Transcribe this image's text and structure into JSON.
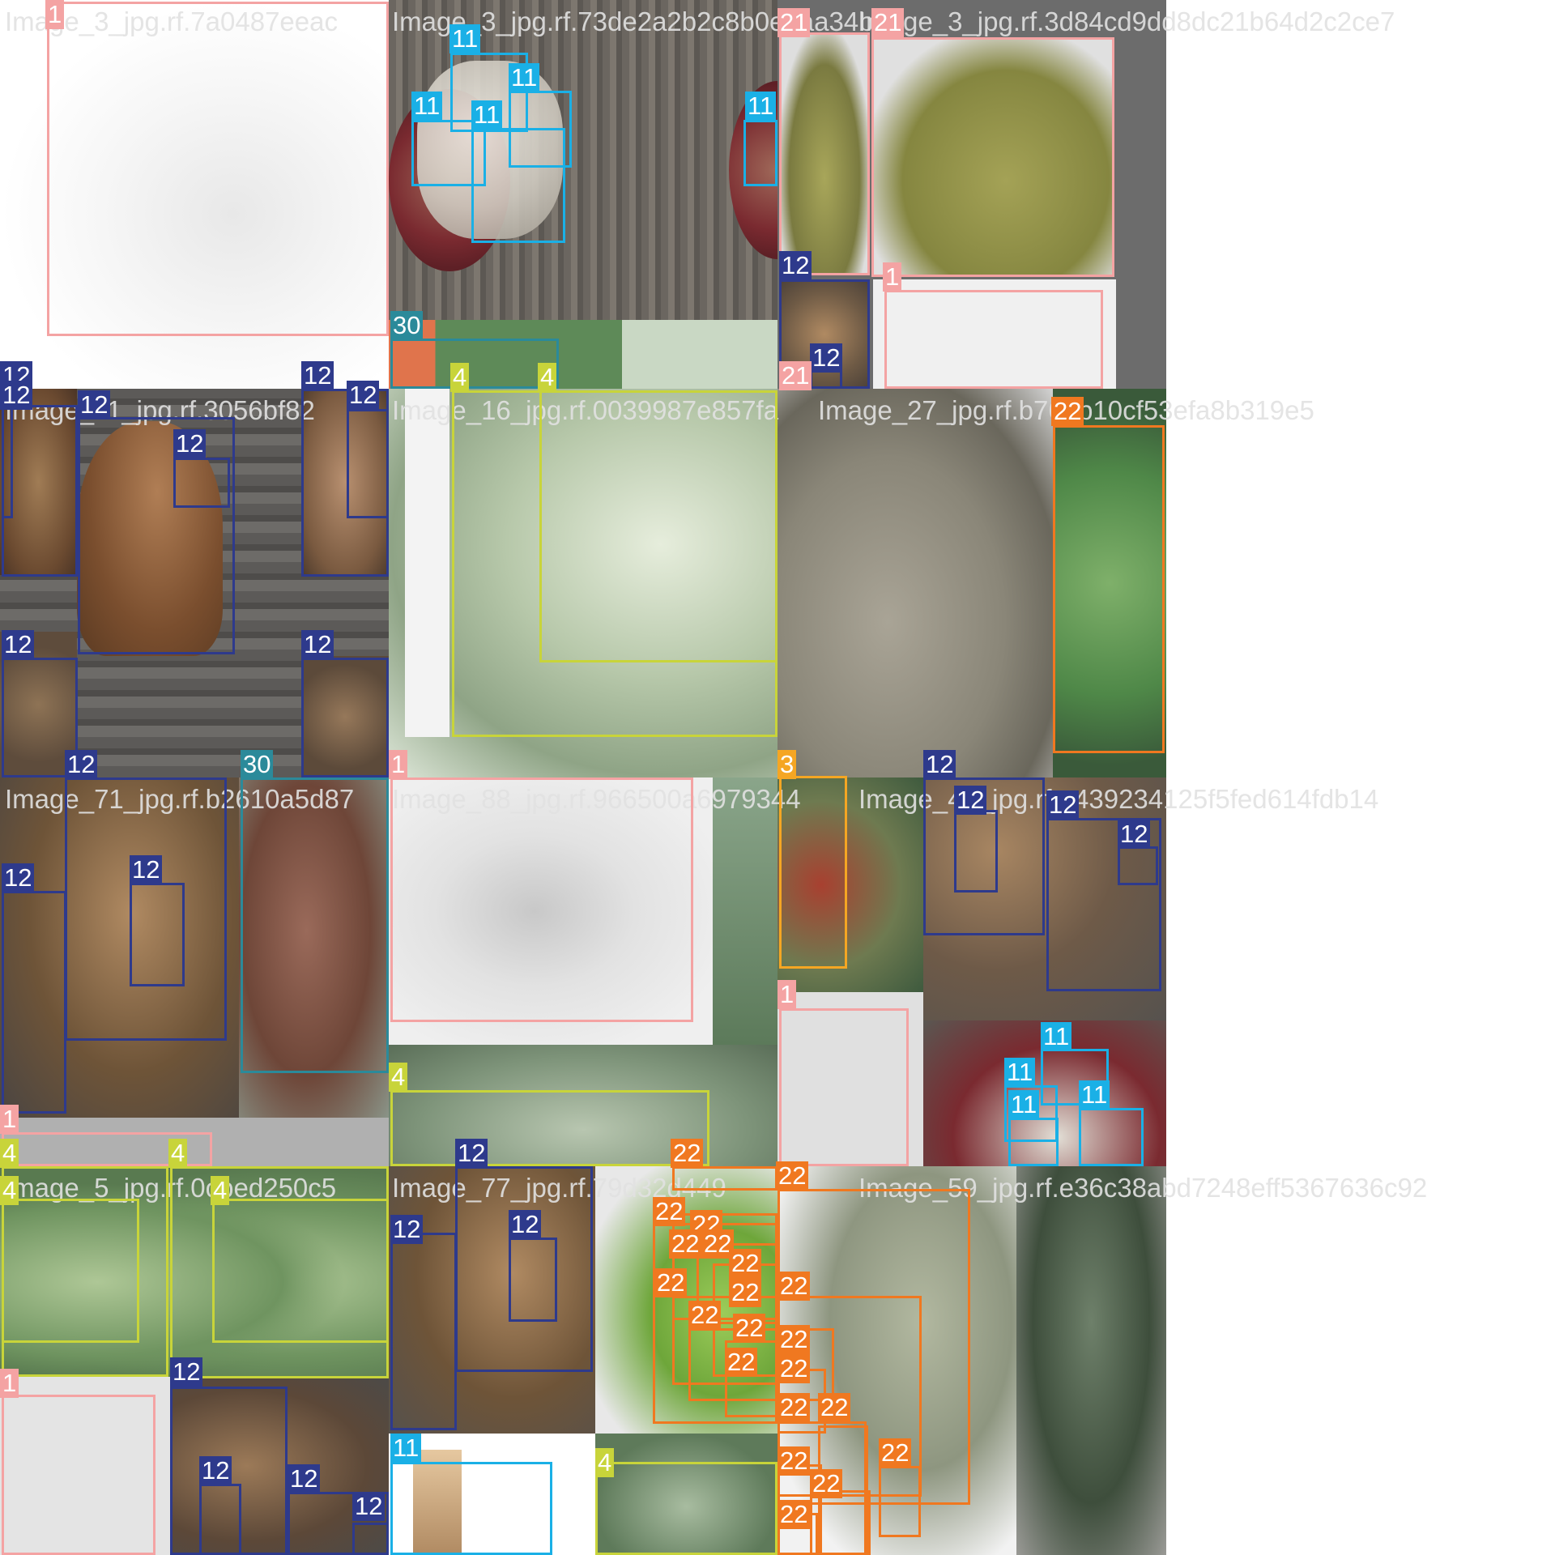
{
  "captions": [
    "Image_3_jpg.rf.7a0487eeac",
    "Image_3_jpg.rf.73de2a2b2c8b0edaa34b0",
    "Image_3_jpg.rf.3d84cd9dd8dc21b64d2c2ce7",
    "Image_11_jpg.rf.3056bf82",
    "Image_16_jpg.rf.0039987e857fa",
    "Image_27_jpg.rf.b76bb10cf53efa8b319e5",
    "Image_71_jpg.rf.b2610a5d87",
    "Image_88_jpg.rf.966500a6979344",
    "Image_40_jpg.rf.e439234125f5fed614fdb14",
    "Image_5_jpg.rf.0cbed250c5",
    "Image_77_jpg.rf.79d32d449",
    "Image_59_jpg.rf.e36c38abd7248eff5367636c92"
  ],
  "class_colors": {
    "1": "#f4a3a3",
    "3": "#f5a623",
    "4": "#c8d43a",
    "11": "#1ab0e6",
    "12": "#2e3a8c",
    "21": "#f4a3a3",
    "22": "#f07820",
    "30": "#2b8a9a"
  },
  "labels": {
    "l1": "1",
    "l3": "3",
    "l4": "4",
    "l11": "11",
    "l12": "12",
    "l21": "21",
    "l22": "22",
    "l30": "30"
  }
}
